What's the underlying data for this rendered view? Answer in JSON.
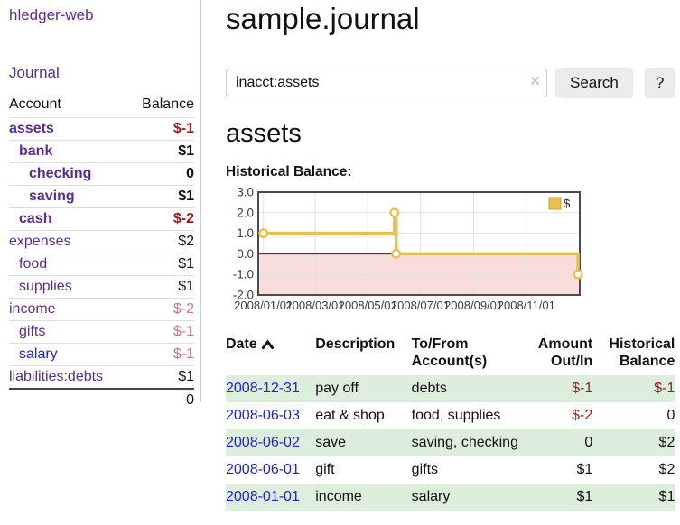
{
  "colors": {
    "purple": "#5c2d91",
    "blue": "#2222cc",
    "darkred": "#941f1f",
    "rose": "#c47a7e",
    "green": "#ddeedd",
    "gold": "#e9c050",
    "pink": "#f9dcdc",
    "zero": "#8c1c1c"
  },
  "sidebar": {
    "brand": "hledger-web",
    "journal_link": "Journal",
    "table": {
      "account_header": "Account",
      "balance_header": "Balance",
      "rows": [
        {
          "name": "assets",
          "indent": 0,
          "bold": true,
          "balance": "$-1",
          "balance_style": "negative"
        },
        {
          "name": "bank",
          "indent": 1,
          "bold": true,
          "balance": "$1",
          "balance_style": "normal"
        },
        {
          "name": "checking",
          "indent": 2,
          "bold": true,
          "balance": "0",
          "balance_style": "normal"
        },
        {
          "name": "saving",
          "indent": 2,
          "bold": true,
          "balance": "$1",
          "balance_style": "normal"
        },
        {
          "name": "cash",
          "indent": 1,
          "bold": true,
          "balance": "$-2",
          "balance_style": "negative"
        },
        {
          "name": "expenses",
          "indent": 0,
          "bold": false,
          "balance": "$2",
          "balance_style": "normal"
        },
        {
          "name": "food",
          "indent": 1,
          "bold": false,
          "balance": "$1",
          "balance_style": "normal"
        },
        {
          "name": "supplies",
          "indent": 1,
          "bold": false,
          "balance": "$1",
          "balance_style": "normal"
        },
        {
          "name": "income",
          "indent": 0,
          "bold": false,
          "balance": "$-2",
          "balance_style": "negative-muted"
        },
        {
          "name": "gifts",
          "indent": 1,
          "bold": false,
          "balance": "$-1",
          "balance_style": "negative-muted"
        },
        {
          "name": "salary",
          "indent": 1,
          "bold": false,
          "balance": "$-1",
          "balance_style": "negative-muted",
          "link_style": "unvisited"
        },
        {
          "name": "liabilities:debts",
          "indent": 0,
          "bold": false,
          "balance": "$1",
          "balance_style": "normal"
        }
      ],
      "total": "0"
    }
  },
  "header": {
    "title": "sample.journal"
  },
  "search": {
    "value": "inacct:assets",
    "clear_icon": "×",
    "button_label": "Search",
    "help_label": "?"
  },
  "account_page": {
    "heading": "assets"
  },
  "chart_data": {
    "type": "line",
    "step": true,
    "title": "Historical Balance:",
    "series": [
      {
        "name": "$",
        "color": "#e9c050",
        "points": [
          [
            "2008-01-01",
            1.0
          ],
          [
            "2008-06-01",
            2.0
          ],
          [
            "2008-06-03",
            0.0
          ],
          [
            "2008-12-31",
            -1.0
          ]
        ]
      }
    ],
    "ylim": [
      -2.0,
      3.0
    ],
    "yticks": [
      3.0,
      2.0,
      1.0,
      0.0,
      -1.0,
      -2.0
    ],
    "xtick_labels": [
      "2008/01/01",
      "2008/03/01",
      "2008/05/01",
      "2008/07/01",
      "2008/09/01",
      "2008/11/01"
    ],
    "x_epoch": "2008-01-01",
    "x_domain_days": [
      -6,
      367
    ],
    "grid": true,
    "legend_position": "top-right",
    "negative_region_color": "#f9dcdc",
    "zero_line_color": "#8c1c1c"
  },
  "register_table": {
    "columns": {
      "date": "Date",
      "description": "Description",
      "tofrom": "To/From Account(s)",
      "amount": "Amount Out/In",
      "balance": "Historical Balance"
    },
    "rows": [
      {
        "date": "2008-12-31",
        "description": "pay off",
        "accounts": "debts",
        "amount": "$-1",
        "amount_style": "negative",
        "balance": "$-1",
        "balance_style": "negative"
      },
      {
        "date": "2008-06-03",
        "description": "eat & shop",
        "accounts": "food, supplies",
        "amount": "$-2",
        "amount_style": "negative",
        "balance": "0",
        "balance_style": "normal"
      },
      {
        "date": "2008-06-02",
        "description": "save",
        "accounts": "saving, checking",
        "amount": "0",
        "amount_style": "normal",
        "balance": "$2",
        "balance_style": "normal"
      },
      {
        "date": "2008-06-01",
        "description": "gift",
        "accounts": "gifts",
        "amount": "$1",
        "amount_style": "normal",
        "balance": "$2",
        "balance_style": "normal"
      },
      {
        "date": "2008-01-01",
        "description": "income",
        "accounts": "salary",
        "amount": "$1",
        "amount_style": "normal",
        "balance": "$1",
        "balance_style": "normal"
      }
    ]
  }
}
